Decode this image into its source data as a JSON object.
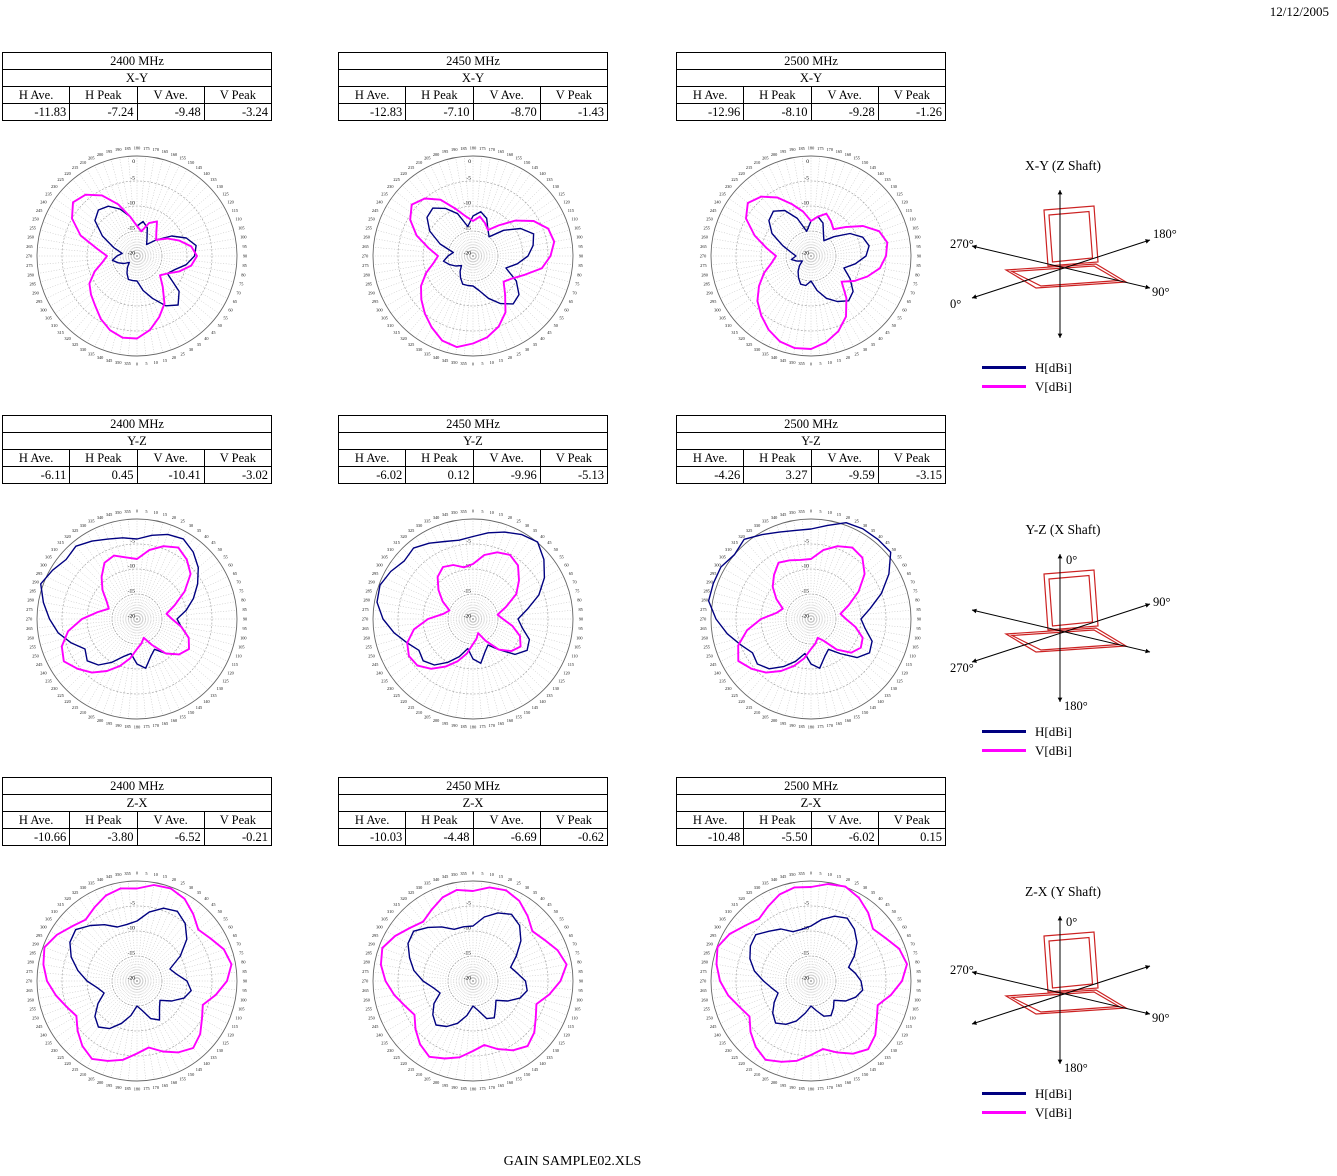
{
  "page": {
    "date": "12/12/2005",
    "footer": "GAIN SAMPLE02.XLS"
  },
  "colors": {
    "h": "#000080",
    "v": "#FF00FF",
    "device": "#CC2222"
  },
  "legend": {
    "h_label": "H[dBi]",
    "v_label": "V[dBi]"
  },
  "table_headers": [
    "H Ave.",
    "H Peak",
    "V Ave.",
    "V Peak"
  ],
  "shafts": [
    {
      "title": "X-Y (Z Shaft)",
      "labels": [
        "270°",
        "180°",
        "0°",
        "90°"
      ]
    },
    {
      "title": "Y-Z (X Shaft)",
      "labels": [
        "0°",
        "90°",
        "270°",
        "180°"
      ]
    },
    {
      "title": "Z-X (Y Shaft)",
      "labels": [
        "0°",
        "270°",
        "90°",
        "180°"
      ]
    }
  ],
  "chart_data": [
    {
      "type": "polar-line",
      "freq": "2400 MHz",
      "plane": "X-Y",
      "stats": [
        "-11.83",
        "-7.24",
        "-9.48",
        "-3.24"
      ],
      "zero": "bottom",
      "angle_step": 5,
      "point_step": 10,
      "rlim": [
        -20,
        0
      ],
      "radial_ticks": [
        0,
        -5,
        -10,
        -15,
        -20
      ],
      "series": [
        {
          "name": "H[dBi]",
          "key": "h",
          "values": [
            -15,
            -13,
            -11,
            -8.5,
            -7.2,
            -9,
            -13,
            -12,
            -10,
            -8.5,
            -8,
            -9.5,
            -12,
            -15,
            -17,
            -16,
            -14,
            -13,
            -14,
            -12,
            -10,
            -8.5,
            -8,
            -9,
            -12,
            -15,
            -17,
            -16,
            -15,
            -16,
            -17,
            -18,
            -17,
            -16,
            -15,
            -15
          ]
        },
        {
          "name": "V[dBi]",
          "key": "v",
          "values": [
            -3.5,
            -5,
            -7,
            -9,
            -12,
            -14,
            -13,
            -11,
            -9,
            -8,
            -9,
            -11,
            -13,
            -15,
            -14,
            -12,
            -13,
            -15,
            -14,
            -12,
            -9,
            -6,
            -4,
            -3.3,
            -5,
            -8,
            -12,
            -14,
            -13,
            -11,
            -9,
            -8,
            -7,
            -5.5,
            -4.2,
            -3.4
          ]
        }
      ]
    },
    {
      "type": "polar-line",
      "freq": "2450 MHz",
      "plane": "X-Y",
      "stats": [
        "-12.83",
        "-7.10",
        "-8.70",
        "-1.43"
      ],
      "zero": "bottom",
      "angle_step": 5,
      "point_step": 10,
      "rlim": [
        -20,
        0
      ],
      "radial_ticks": [
        0,
        -5,
        -10,
        -15,
        -20
      ],
      "series": [
        {
          "name": "H[dBi]",
          "key": "h",
          "values": [
            -14,
            -13,
            -11,
            -9,
            -7.5,
            -8,
            -10,
            -13,
            -11,
            -9,
            -7.8,
            -7.1,
            -9,
            -12,
            -15,
            -14,
            -12,
            -11,
            -12,
            -14,
            -11,
            -9,
            -7.5,
            -8,
            -10,
            -13,
            -16,
            -15,
            -14,
            -15,
            -16,
            -17,
            -16,
            -15,
            -14,
            -14
          ]
        },
        {
          "name": "V[dBi]",
          "key": "v",
          "values": [
            -2.5,
            -3.5,
            -5,
            -7,
            -10,
            -12,
            -11,
            -9,
            -6,
            -4.5,
            -3.5,
            -4,
            -6,
            -9,
            -12,
            -14,
            -13,
            -12,
            -13,
            -12,
            -10,
            -7,
            -5,
            -4,
            -5.5,
            -8,
            -11,
            -13,
            -12,
            -10,
            -8,
            -6.5,
            -5,
            -3.5,
            -2,
            -1.5
          ]
        }
      ]
    },
    {
      "type": "polar-line",
      "freq": "2500 MHz",
      "plane": "X-Y",
      "stats": [
        "-12.96",
        "-8.10",
        "-9.28",
        "-1.26"
      ],
      "zero": "bottom",
      "angle_step": 5,
      "point_step": 10,
      "rlim": [
        -20,
        0
      ],
      "radial_ticks": [
        0,
        -5,
        -10,
        -15,
        -20
      ],
      "series": [
        {
          "name": "H[dBi]",
          "key": "h",
          "values": [
            -15,
            -13,
            -11,
            -9.5,
            -8.3,
            -9,
            -11,
            -13,
            -11,
            -9,
            -8.2,
            -9,
            -11,
            -14,
            -16,
            -15,
            -13,
            -12,
            -13,
            -15,
            -12,
            -9.5,
            -8.3,
            -9,
            -11,
            -14,
            -16,
            -17,
            -16,
            -17,
            -18,
            -17,
            -16,
            -15,
            -14,
            -14
          ]
        },
        {
          "name": "V[dBi]",
          "key": "v",
          "values": [
            -1.4,
            -2.5,
            -4,
            -6,
            -9,
            -12,
            -10,
            -8,
            -6,
            -5,
            -4.5,
            -5.5,
            -8,
            -11,
            -13,
            -12,
            -11,
            -12,
            -13,
            -11,
            -9,
            -6.5,
            -4.5,
            -3.5,
            -5,
            -8,
            -11,
            -13,
            -12,
            -10,
            -8,
            -6,
            -4.5,
            -3,
            -1.8,
            -1.3
          ]
        }
      ]
    },
    {
      "type": "polar-line",
      "freq": "2400 MHz",
      "plane": "Y-Z",
      "stats": [
        "-6.11",
        "0.45",
        "-10.41",
        "-3.02"
      ],
      "zero": "top",
      "angle_step": 5,
      "point_step": 10,
      "rlim": [
        -20,
        0
      ],
      "radial_ticks": [
        0,
        -5,
        -10,
        -15,
        -20
      ],
      "series": [
        {
          "name": "H[dBi]",
          "key": "h",
          "values": [
            -4,
            -3,
            -2,
            -1.5,
            -2.5,
            -4,
            -6,
            -8,
            -10,
            -12,
            -11,
            -9,
            -8,
            -9,
            -11,
            -13,
            -12,
            -10,
            -11,
            -13,
            -12,
            -10,
            -8,
            -7,
            -8,
            -6,
            -4,
            -2.5,
            -1,
            0.5,
            -0.5,
            -1.5,
            -1,
            -2,
            -3,
            -3.5
          ]
        },
        {
          "name": "V[dBi]",
          "key": "v",
          "values": [
            -8,
            -6,
            -4.5,
            -3.5,
            -4.5,
            -6,
            -9,
            -12,
            -14,
            -13,
            -11,
            -9,
            -8,
            -9,
            -11,
            -14,
            -16,
            -15,
            -14,
            -12,
            -10,
            -8,
            -6,
            -4.5,
            -3.1,
            -4,
            -6,
            -9,
            -12,
            -14,
            -13,
            -11,
            -9,
            -7,
            -6.5,
            -7.5
          ]
        }
      ]
    },
    {
      "type": "polar-line",
      "freq": "2450 MHz",
      "plane": "Y-Z",
      "stats": [
        "-6.02",
        "0.12",
        "-9.96",
        "-5.13"
      ],
      "zero": "top",
      "angle_step": 5,
      "point_step": 10,
      "rlim": [
        -20,
        0
      ],
      "radial_ticks": [
        0,
        -5,
        -10,
        -15,
        -20
      ],
      "series": [
        {
          "name": "H[dBi]",
          "key": "h",
          "values": [
            -3.5,
            -2.5,
            -1.5,
            -0.5,
            0.1,
            -1.5,
            -3.5,
            -6,
            -9,
            -11,
            -10,
            -8,
            -7.5,
            -9,
            -12,
            -14,
            -13,
            -11,
            -12,
            -14,
            -12,
            -10,
            -8,
            -7,
            -7.5,
            -6,
            -4,
            -2,
            -0.5,
            -0.2,
            -1,
            -2,
            -1.5,
            -2.5,
            -3.5,
            -4
          ]
        },
        {
          "name": "V[dBi]",
          "key": "v",
          "values": [
            -9,
            -7,
            -5.8,
            -5.2,
            -6,
            -8,
            -10,
            -13,
            -15,
            -14,
            -12,
            -10,
            -9,
            -10,
            -12,
            -15,
            -17,
            -16,
            -15,
            -13,
            -11,
            -9,
            -7,
            -5.5,
            -5.2,
            -6,
            -8,
            -11,
            -14,
            -15,
            -13,
            -11,
            -9,
            -8,
            -8.5,
            -9.5
          ]
        }
      ]
    },
    {
      "type": "polar-line",
      "freq": "2500 MHz",
      "plane": "Y-Z",
      "stats": [
        "-4.26",
        "3.27",
        "-9.59",
        "-3.15"
      ],
      "zero": "top",
      "angle_step": 5,
      "point_step": 10,
      "rlim": [
        -20,
        0
      ],
      "radial_ticks": [
        0,
        -5,
        -10,
        -15,
        -20
      ],
      "series": [
        {
          "name": "H[dBi]",
          "key": "h",
          "values": [
            -2,
            -1,
            0.5,
            2,
            3.2,
            1,
            -2,
            -5,
            -8,
            -10,
            -9,
            -7,
            -6.5,
            -8,
            -11,
            -13,
            -12,
            -10,
            -11,
            -13,
            -11,
            -9,
            -7,
            -6,
            -6.5,
            -5,
            -3,
            -1,
            1,
            2.5,
            1.5,
            0,
            1,
            -0.5,
            -1.5,
            -2
          ]
        },
        {
          "name": "V[dBi]",
          "key": "v",
          "values": [
            -8,
            -6,
            -4.5,
            -3.5,
            -4,
            -6,
            -9,
            -12,
            -14,
            -13,
            -11,
            -9,
            -8.5,
            -9.5,
            -12,
            -15,
            -16,
            -15,
            -14,
            -12,
            -10,
            -8,
            -6,
            -4.5,
            -3.2,
            -4.5,
            -7,
            -10,
            -13,
            -14,
            -12,
            -10,
            -8.5,
            -7,
            -7.5,
            -8
          ]
        }
      ]
    },
    {
      "type": "polar-line",
      "freq": "2400 MHz",
      "plane": "Z-X",
      "stats": [
        "-10.66",
        "-3.80",
        "-6.52",
        "-0.21"
      ],
      "zero": "top",
      "angle_step": 5,
      "point_step": 10,
      "rlim": [
        -20,
        0
      ],
      "radial_ticks": [
        0,
        -5,
        -10,
        -15,
        -20
      ],
      "series": [
        {
          "name": "H[dBi]",
          "key": "h",
          "values": [
            -8,
            -6,
            -4.5,
            -3.9,
            -5,
            -7,
            -10,
            -13,
            -12,
            -10,
            -9,
            -10,
            -12,
            -14,
            -13,
            -11,
            -12,
            -14,
            -15,
            -13,
            -11,
            -9,
            -8,
            -9,
            -11,
            -13,
            -12,
            -10,
            -8,
            -6,
            -4.5,
            -4,
            -5.5,
            -7,
            -8.5,
            -8.5
          ]
        },
        {
          "name": "V[dBi]",
          "key": "v",
          "values": [
            -1.5,
            -0.5,
            -0.3,
            -1,
            -2.5,
            -4,
            -3,
            -1.5,
            -0.8,
            -2,
            -4,
            -6,
            -5,
            -3.5,
            -2.5,
            -3.5,
            -5,
            -6.5,
            -5.5,
            -4,
            -3,
            -2,
            -3,
            -4.5,
            -6,
            -5,
            -3.5,
            -2,
            -1,
            -0.3,
            -1.5,
            -3,
            -4,
            -3,
            -1.8,
            -1.2
          ]
        }
      ]
    },
    {
      "type": "polar-line",
      "freq": "2450 MHz",
      "plane": "Z-X",
      "stats": [
        "-10.03",
        "-4.48",
        "-6.69",
        "-0.62"
      ],
      "zero": "top",
      "angle_step": 5,
      "point_step": 10,
      "rlim": [
        -20,
        0
      ],
      "radial_ticks": [
        0,
        -5,
        -10,
        -15,
        -20
      ],
      "series": [
        {
          "name": "H[dBi]",
          "key": "h",
          "values": [
            -9,
            -7,
            -5.5,
            -4.6,
            -5.5,
            -7.5,
            -10,
            -12,
            -11,
            -9.5,
            -9,
            -10,
            -12,
            -14,
            -13,
            -11.5,
            -12,
            -14,
            -15,
            -13,
            -11,
            -9.5,
            -8.5,
            -9.5,
            -11,
            -13,
            -12,
            -10,
            -8,
            -6.5,
            -5,
            -4.5,
            -6,
            -7.5,
            -9,
            -9
          ]
        },
        {
          "name": "V[dBi]",
          "key": "v",
          "values": [
            -2,
            -1,
            -0.7,
            -1.5,
            -3,
            -4.5,
            -3.5,
            -2,
            -1,
            -2.5,
            -4.5,
            -6.5,
            -5.5,
            -4,
            -3,
            -4,
            -5.5,
            -7,
            -6,
            -4.5,
            -3.5,
            -2.5,
            -3.5,
            -5,
            -6.5,
            -5.5,
            -4,
            -2.5,
            -1.3,
            -0.7,
            -2,
            -3.5,
            -4.5,
            -3.5,
            -2.2,
            -1.5
          ]
        }
      ]
    },
    {
      "type": "polar-line",
      "freq": "2500 MHz",
      "plane": "Z-X",
      "stats": [
        "-10.48",
        "-5.50",
        "-6.02",
        "0.15"
      ],
      "zero": "top",
      "angle_step": 5,
      "point_step": 10,
      "rlim": [
        -20,
        0
      ],
      "radial_ticks": [
        0,
        -5,
        -10,
        -15,
        -20
      ],
      "series": [
        {
          "name": "H[dBi]",
          "key": "h",
          "values": [
            -9,
            -7.5,
            -6.2,
            -5.5,
            -6.5,
            -8,
            -10,
            -12,
            -11,
            -10,
            -9.5,
            -10.5,
            -12,
            -14,
            -13,
            -12,
            -12.5,
            -14,
            -15,
            -13.5,
            -11.5,
            -10,
            -9,
            -10,
            -11.5,
            -13,
            -12,
            -10.5,
            -8.5,
            -7,
            -6,
            -5.6,
            -7,
            -8,
            -9.5,
            -9.5
          ]
        },
        {
          "name": "V[dBi]",
          "key": "v",
          "values": [
            -1.2,
            -0.3,
            0.1,
            -0.8,
            -2.2,
            -3.8,
            -2.8,
            -1.2,
            -0.5,
            -1.8,
            -3.8,
            -5.8,
            -4.8,
            -3.2,
            -2.2,
            -3.2,
            -4.8,
            -6.2,
            -5.2,
            -3.8,
            -2.8,
            -1.8,
            -2.8,
            -4.2,
            -5.8,
            -4.8,
            -3.2,
            -1.8,
            -0.8,
            -0.1,
            -1.2,
            -2.8,
            -3.8,
            -2.8,
            -1.6,
            -1
          ]
        }
      ]
    }
  ]
}
